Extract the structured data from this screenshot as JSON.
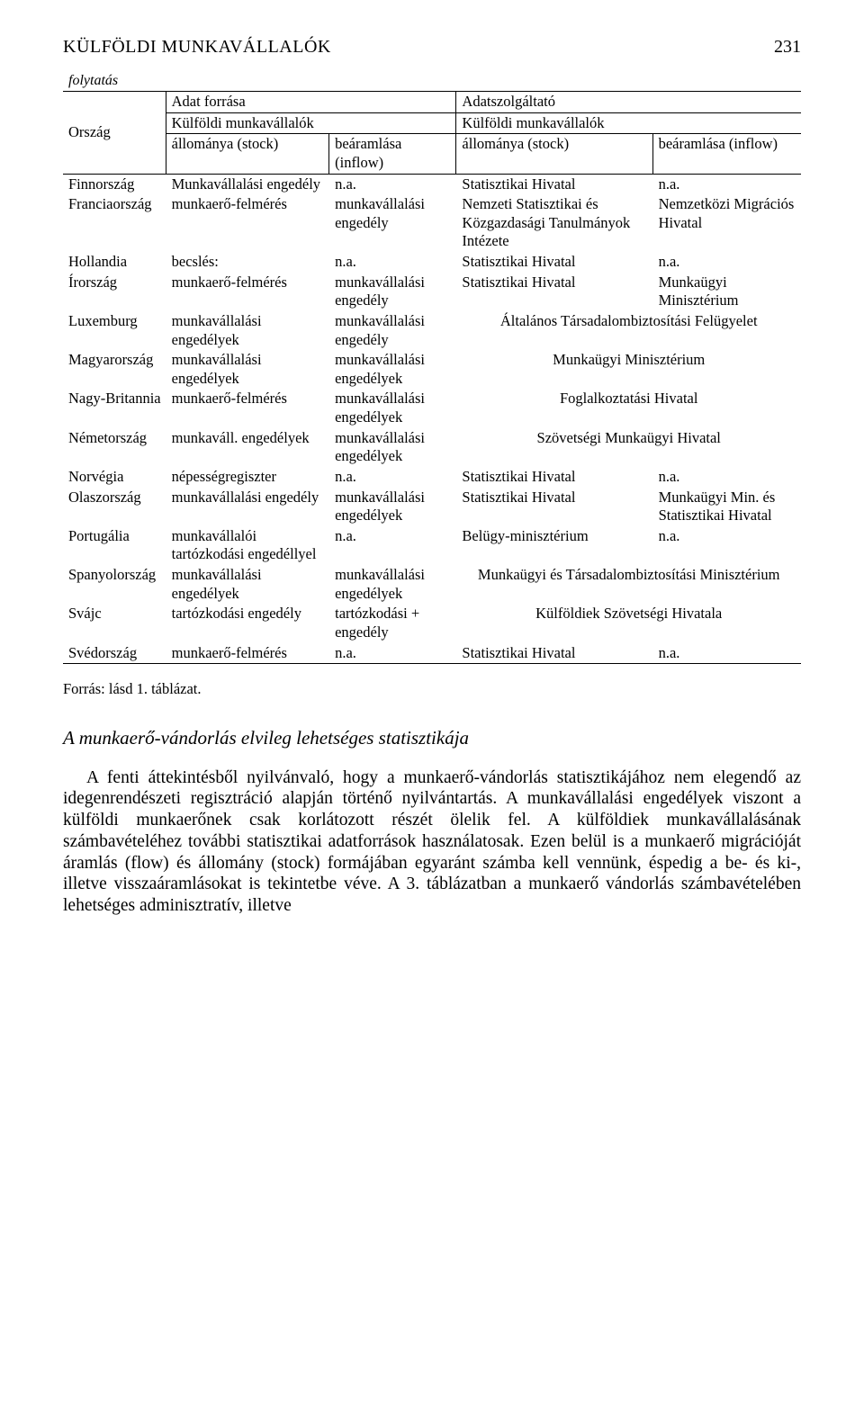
{
  "header": {
    "title": "KÜLFÖLDI MUNKAVÁLLALÓK",
    "page_number": "231"
  },
  "table": {
    "continuation_label": "folytatás",
    "head": {
      "country": "Ország",
      "source": "Adat forrása",
      "provider": "Adatszolgáltató",
      "foreign_workers": "Külföldi munkavállalók",
      "stock": "állománya (stock)",
      "inflow": "beáramlása (inflow)"
    },
    "rows": [
      {
        "country": "Finnország",
        "c2": "Munkavállalási engedély",
        "c3": "n.a.",
        "c4": "Statisztikai Hivatal",
        "c5": "n.a."
      },
      {
        "country": "Franciaország",
        "c2": "munkaerő-felmérés",
        "c3": "munkavállalási engedély",
        "c4": "Nemzeti Statisztikai és Közgazdasági Tanulmányok Intézete",
        "c5": "Nemzetközi Migrációs Hivatal"
      },
      {
        "country": "Hollandia",
        "c2": "becslés:",
        "c3": "n.a.",
        "c4": "Statisztikai Hivatal",
        "c5": "n.a."
      },
      {
        "country": "Írország",
        "c2": "munkaerő-felmérés",
        "c3": "munkavállalási engedély",
        "c4": "Statisztikai Hivatal",
        "c5": "Munkaügyi Minisztérium"
      },
      {
        "country": "Luxemburg",
        "c2": "munkavállalási engedélyek",
        "c3": "munkavállalási engedély",
        "c45": "Általános Társadalombiztosítási Felügyelet"
      },
      {
        "country": "Magyarország",
        "c2": "munkavállalási engedélyek",
        "c3": "munkavállalási engedélyek",
        "c45": "Munkaügyi Minisztérium",
        "bold": true
      },
      {
        "country": "Nagy-Britannia",
        "c2": "munkaerő-felmérés",
        "c3": "munkavállalási engedélyek",
        "c45": "Foglalkoztatási Hivatal"
      },
      {
        "country": "Németország",
        "c2": "munkaváll. engedélyek",
        "c3": "munkavállalási engedélyek",
        "c45": "Szövetségi Munkaügyi Hivatal"
      },
      {
        "country": "Norvégia",
        "c2": "népességregiszter",
        "c3": "n.a.",
        "c4": "Statisztikai Hivatal",
        "c5": "n.a."
      },
      {
        "country": "Olaszország",
        "c2": "munkavállalási engedély",
        "c3": "munkavállalási engedélyek",
        "c4": "Statisztikai Hivatal",
        "c5": "Munkaügyi Min. és Statisztikai Hivatal"
      },
      {
        "country": "Portugália",
        "c2": "munkavállalói tartózkodási engedéllyel",
        "c3": "n.a.",
        "c4": "Belügy-minisztérium",
        "c5": "n.a."
      },
      {
        "country": "Spanyolország",
        "c2": "munkavállalási engedélyek",
        "c3": "munkavállalási engedélyek",
        "c45": "Munkaügyi és Társadalombiztosítási Minisztérium"
      },
      {
        "country": "Svájc",
        "c2": "tartózkodási engedély",
        "c3": "tartózkodási + engedély",
        "c45": "Külföldiek Szövetségi Hivatala"
      },
      {
        "country": "Svédország",
        "c2": "munkaerő-felmérés",
        "c3": "n.a.",
        "c4": "Statisztikai Hivatal",
        "c5": "n.a."
      }
    ]
  },
  "source_note": "Forrás: lásd 1. táblázat.",
  "section_title": "A munkaerő-vándorlás elvileg lehetséges statisztikája",
  "body_paragraph": "A fenti áttekintésből nyilvánvaló, hogy a munkaerő-vándorlás statisztikájához nem elegendő az idegenrendészeti regisztráció alapján történő nyilvántartás. A munkavállalási engedélyek viszont a külföldi munkaerőnek csak korlátozott részét ölelik fel. A külföldiek munkavállalásának számbavételéhez további statisztikai adatforrások használatosak. Ezen belül is a munkaerő migrációját áramlás (flow) és állomány (stock) formájában egyaránt számba kell vennünk, éspedig a be- és ki-, illetve visszaáramlásokat is tekintetbe véve. A 3. táblázatban a munkaerő vándorlás számbavételében lehetséges adminisztratív, illetve"
}
